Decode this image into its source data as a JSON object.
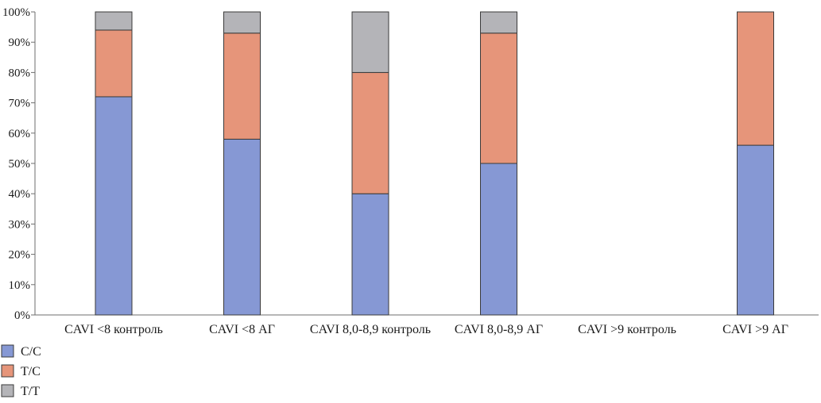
{
  "chart_data": {
    "type": "bar",
    "stacked": true,
    "categories": [
      "CAVI <8 контроль",
      "CAVI <8 АГ",
      "CAVI 8,0-8,9 контроль",
      "CAVI 8,0-8,9 АГ",
      "CAVI >9 контроль",
      "CAVI >9 АГ"
    ],
    "series": [
      {
        "name": "C/C",
        "color": "#8698d4",
        "values": [
          72,
          58,
          40,
          50,
          0,
          56
        ]
      },
      {
        "name": "T/C",
        "color": "#e6957a",
        "values": [
          22,
          35,
          40,
          43,
          0,
          44
        ]
      },
      {
        "name": "T/T",
        "color": "#b4b4b8",
        "values": [
          6,
          7,
          20,
          7,
          0,
          0
        ]
      }
    ],
    "ylim": [
      0,
      100
    ],
    "y_ticks": [
      "0%",
      "10%",
      "20%",
      "30%",
      "40%",
      "50%",
      "60%",
      "70%",
      "80%",
      "90%",
      "100%"
    ],
    "y_tick_values": [
      0,
      10,
      20,
      30,
      40,
      50,
      60,
      70,
      80,
      90,
      100
    ],
    "grid": false,
    "legend_position": "bottom-left",
    "title": "",
    "xlabel": "",
    "ylabel": ""
  }
}
